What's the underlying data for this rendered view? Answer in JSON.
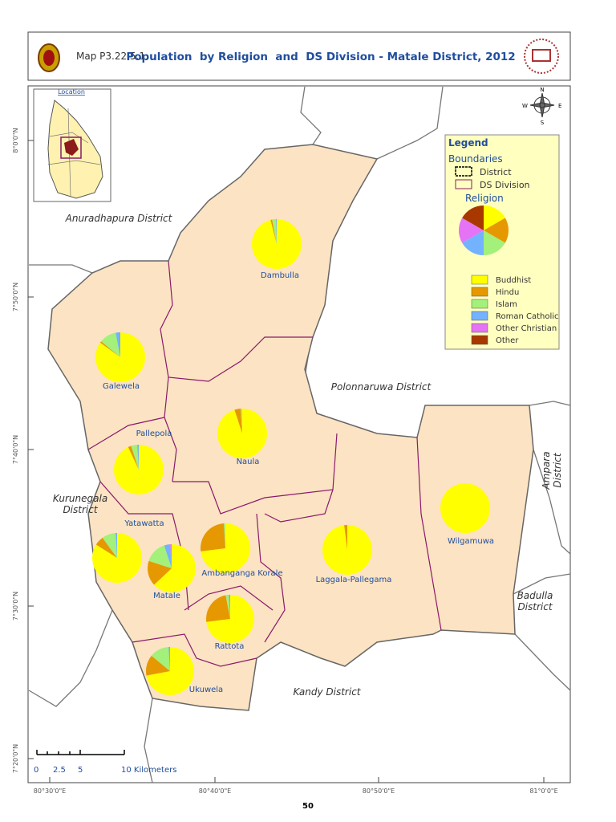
{
  "header": {
    "map_id": "Map P3.22.5.1",
    "title": "Population  by Religion  and  DS Division - Matale District, 2012"
  },
  "inset": {
    "label": "Location"
  },
  "compass": {
    "n": "N",
    "s": "S",
    "e": "E",
    "w": "W"
  },
  "legend": {
    "title": "Legend",
    "boundaries_title": "Boundaries",
    "boundaries": [
      "District",
      "DS Division"
    ],
    "religion_title": "Religion",
    "religions": [
      {
        "name": "Buddhist",
        "color": "#ffff00"
      },
      {
        "name": "Hindu",
        "color": "#e69800"
      },
      {
        "name": "Islam",
        "color": "#a3f07a"
      },
      {
        "name": "Roman Catholic",
        "color": "#73b2ff"
      },
      {
        "name": "Other Christian",
        "color": "#e573f5"
      },
      {
        "name": "Other",
        "color": "#a83800"
      }
    ]
  },
  "regions": [
    "Anuradhapura District",
    "Polonnaruwa District",
    "Kurunegala District",
    "Kandy District",
    "Badulla District",
    "Ampara District"
  ],
  "divisions": [
    {
      "name": "Dambulla",
      "values": [
        96,
        1,
        2.5,
        0.5,
        0,
        0
      ]
    },
    {
      "name": "Galewela",
      "values": [
        85,
        1,
        11,
        3,
        0,
        0
      ]
    },
    {
      "name": "Pallepola",
      "values": [
        93,
        2,
        4,
        1,
        0,
        0
      ]
    },
    {
      "name": "Naula",
      "values": [
        95,
        4,
        1,
        0,
        0,
        0
      ]
    },
    {
      "name": "Yatawatta",
      "values": [
        84,
        6,
        9,
        1,
        0,
        0
      ]
    },
    {
      "name": "Matale",
      "values": [
        63,
        17,
        15,
        4,
        1,
        0
      ]
    },
    {
      "name": "Ambanganga Korale",
      "values": [
        73,
        26,
        1,
        0,
        0,
        0
      ]
    },
    {
      "name": "Laggala-Pallegama",
      "values": [
        98,
        2,
        0,
        0,
        0,
        0
      ]
    },
    {
      "name": "Wilgamuwa",
      "values": [
        100,
        0,
        0,
        0,
        0,
        0
      ]
    },
    {
      "name": "Rattota",
      "values": [
        73,
        24,
        2,
        1,
        0,
        0
      ]
    },
    {
      "name": "Ukuwela",
      "values": [
        72,
        14,
        13,
        1,
        0,
        0
      ]
    }
  ],
  "scale": {
    "ticks": [
      "0",
      "2.5",
      "5",
      "10 Kilometers"
    ]
  },
  "lat_labels": [
    "8°0'0\"N",
    "7°50'0\"N",
    "7°40'0\"N",
    "7°30'0\"N",
    "7°20'0\"N"
  ],
  "lon_labels": [
    "80°30'0\"E",
    "80°40'0\"E",
    "80°50'0\"E",
    "81°0'0\"E"
  ],
  "page_number": "50"
}
